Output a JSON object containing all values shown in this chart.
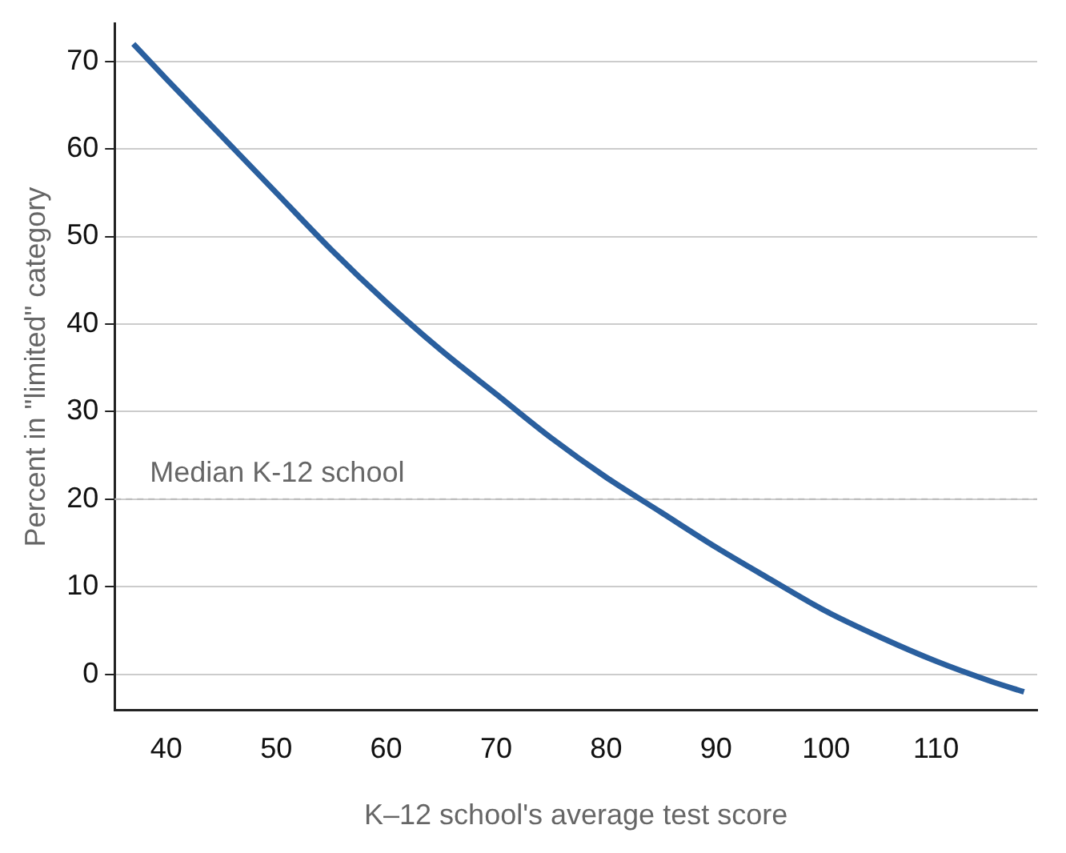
{
  "chart_data": {
    "type": "line",
    "xlabel": "K–12 school's average test score",
    "ylabel": "Percent in \"limited\" category",
    "x": [
      37,
      40,
      45,
      50,
      55,
      60,
      65,
      70,
      75,
      80,
      85,
      90,
      95,
      100,
      105,
      110,
      115,
      118
    ],
    "series": [
      {
        "color": "#2a5f9e",
        "values": [
          72,
          68,
          61.5,
          55,
          48.5,
          42.5,
          37,
          32,
          27,
          22.5,
          18.5,
          14.5,
          10.8,
          7.2,
          4.2,
          1.5,
          -0.8,
          -2
        ]
      }
    ],
    "xlim": [
      35.3,
      119.2
    ],
    "xticks": [
      40,
      50,
      60,
      70,
      80,
      90,
      100,
      110
    ],
    "ylim": [
      -4.1,
      74.3
    ],
    "yticks": [
      0,
      10,
      20,
      30,
      40,
      50,
      60,
      70
    ],
    "grid": "y",
    "legend": false,
    "marker": "none",
    "line_style": "solid",
    "ref_lines": [
      {
        "axis": "y",
        "value": 20,
        "label": "Median K-12 school",
        "color": "#bbbbbb",
        "line_style": "dashed"
      }
    ]
  }
}
